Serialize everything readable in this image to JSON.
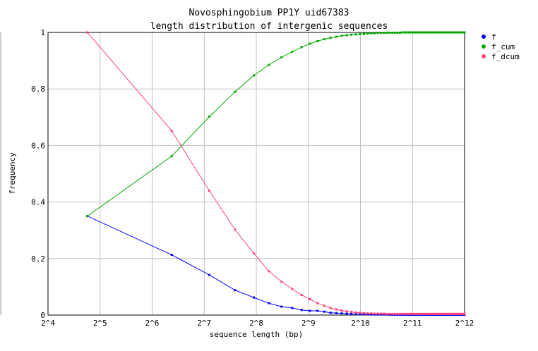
{
  "chart_data": {
    "type": "line",
    "title": "Novosphingobium PP1Y uid67383",
    "subtitle": "length distribution of intergenic sequences",
    "xlabel": "sequence length (bp)",
    "ylabel": "frequency",
    "x_scale": "log2",
    "xlim": [
      16,
      4096
    ],
    "ylim": [
      0,
      1
    ],
    "x_tick_labels": [
      "2^4",
      "2^5",
      "2^6",
      "2^7",
      "2^8",
      "2^9",
      "2^10",
      "2^11",
      "2^12"
    ],
    "y_tick_labels": [
      "0",
      "0.2",
      "0.4",
      "0.6",
      "0.8",
      "1"
    ],
    "grid": true,
    "legend": "top-right",
    "x": [
      27,
      83,
      137,
      193,
      248,
      303,
      358,
      413,
      468,
      523,
      578,
      633,
      688,
      743,
      798,
      853,
      908,
      963,
      1018,
      1073,
      1128,
      1183,
      1238,
      1293,
      1348,
      1403,
      1458,
      1513,
      1568,
      1623,
      1678,
      1733,
      1788,
      1843,
      1898,
      1953,
      2008,
      2063,
      2118,
      2173,
      2228,
      2283,
      2338,
      2393,
      2448,
      2503,
      2558,
      2613,
      2668,
      2723,
      2778,
      2833,
      2888,
      2943,
      2998,
      3053,
      3108,
      3163,
      3218,
      3273,
      3328,
      3383,
      3438,
      3493,
      3548,
      3603,
      3658,
      3713,
      3768,
      3823,
      3878,
      3933,
      3988,
      4043,
      4096
    ],
    "series": [
      {
        "name": "f",
        "color": "#0000ff",
        "values": [
          0.35,
          0.213,
          0.142,
          0.088,
          0.062,
          0.042,
          0.03,
          0.025,
          0.018,
          0.015,
          0.015,
          0.012,
          0.008,
          0.007,
          0.006,
          0.005,
          0.004,
          0.004,
          0.003,
          0.003,
          0.003,
          0.002,
          0.002,
          0.002,
          0.002,
          0.002,
          0.002,
          0.001,
          0.001,
          0.001,
          0.001,
          0.001,
          0.001,
          0.001,
          0.001,
          0.001,
          0.001,
          0.001,
          0.001,
          0.001,
          0.001,
          0.001,
          0.001,
          0.001,
          0.001,
          0.001,
          0.001,
          0.001,
          0.001,
          0.001,
          0.001,
          0.001,
          0.001,
          0.001,
          0.001,
          0.001,
          0.001,
          0.001,
          0.001,
          0.001,
          0.001,
          0.001,
          0.001,
          0.001,
          0.001,
          0.001,
          0.001,
          0.001,
          0.001,
          0.001,
          0.001,
          0.001,
          0.001,
          0.001,
          0.001
        ]
      },
      {
        "name": "f_cum",
        "color": "#00aa00",
        "values": [
          0.35,
          0.562,
          0.702,
          0.79,
          0.848,
          0.885,
          0.912,
          0.932,
          0.948,
          0.96,
          0.969,
          0.976,
          0.981,
          0.985,
          0.988,
          0.99,
          0.992,
          0.993,
          0.994,
          0.995,
          0.996,
          0.997,
          0.997,
          0.998,
          0.998,
          0.998,
          0.999,
          0.999,
          0.999,
          0.999,
          0.999,
          0.999,
          1.0,
          1.0,
          1.0,
          1.0,
          1.0,
          1.0,
          1.0,
          1.0,
          1.0,
          1.0,
          1.0,
          1.0,
          1.0,
          1.0,
          1.0,
          1.0,
          1.0,
          1.0,
          1.0,
          1.0,
          1.0,
          1.0,
          1.0,
          1.0,
          1.0,
          1.0,
          1.0,
          1.0,
          1.0,
          1.0,
          1.0,
          1.0,
          1.0,
          1.0,
          1.0,
          1.0,
          1.0,
          1.0,
          1.0,
          1.0,
          1.0,
          1.0,
          1.0
        ]
      },
      {
        "name": "f_dcum",
        "color": "#ff4477",
        "values": [
          1.0,
          0.652,
          0.44,
          0.302,
          0.218,
          0.155,
          0.118,
          0.092,
          0.071,
          0.056,
          0.042,
          0.033,
          0.025,
          0.02,
          0.016,
          0.013,
          0.011,
          0.009,
          0.008,
          0.007,
          0.006,
          0.006,
          0.005,
          0.005,
          0.005,
          0.005,
          0.004,
          0.004,
          0.004,
          0.004,
          0.004,
          0.004,
          0.004,
          0.004,
          0.004,
          0.004,
          0.004,
          0.004,
          0.004,
          0.004,
          0.004,
          0.004,
          0.004,
          0.004,
          0.004,
          0.004,
          0.004,
          0.004,
          0.004,
          0.004,
          0.004,
          0.004,
          0.004,
          0.004,
          0.004,
          0.004,
          0.004,
          0.004,
          0.004,
          0.004,
          0.004,
          0.004,
          0.004,
          0.004,
          0.004,
          0.004,
          0.004,
          0.004,
          0.004,
          0.004,
          0.004,
          0.004,
          0.004,
          0.004,
          0.004
        ]
      }
    ]
  }
}
